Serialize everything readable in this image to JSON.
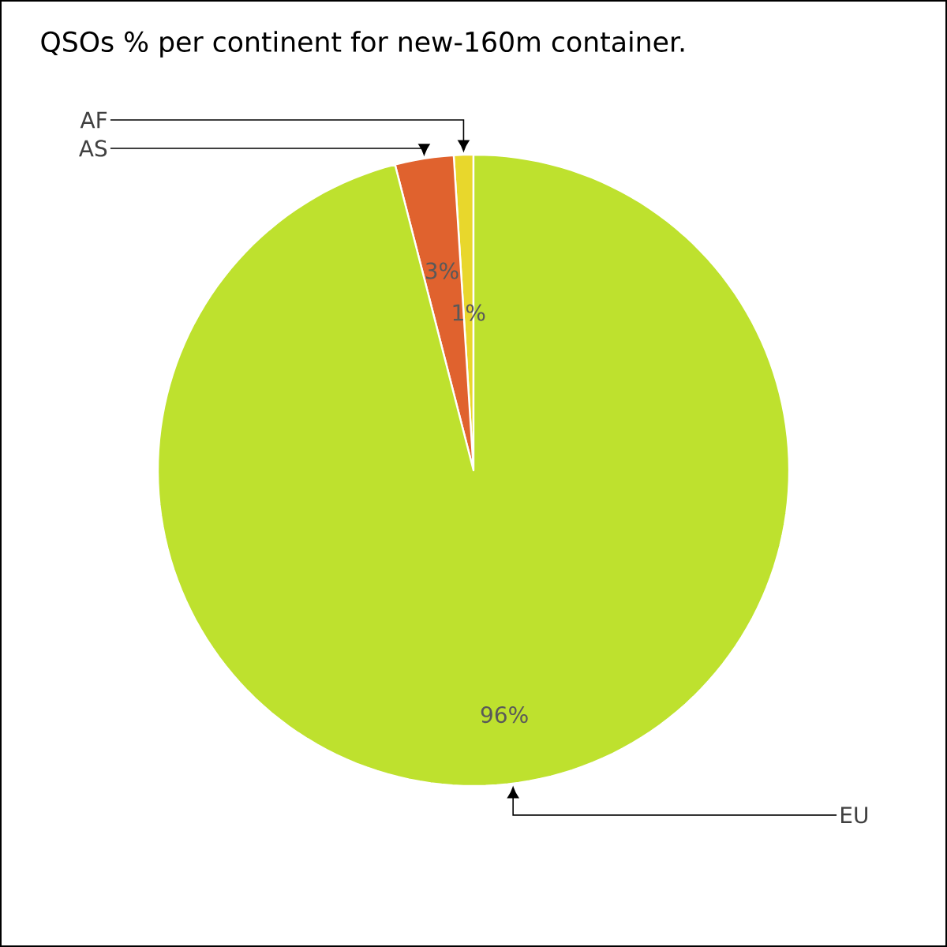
{
  "chart_data": {
    "type": "pie",
    "title": "QSOs % per continent for new-160m container.",
    "categories": [
      "AF",
      "AS",
      "EU"
    ],
    "values": [
      1,
      3,
      96
    ],
    "colors": [
      "#e8d72c",
      "#e0622e",
      "#bee12e"
    ],
    "value_labels": [
      "1%",
      "3%",
      "96%"
    ]
  }
}
